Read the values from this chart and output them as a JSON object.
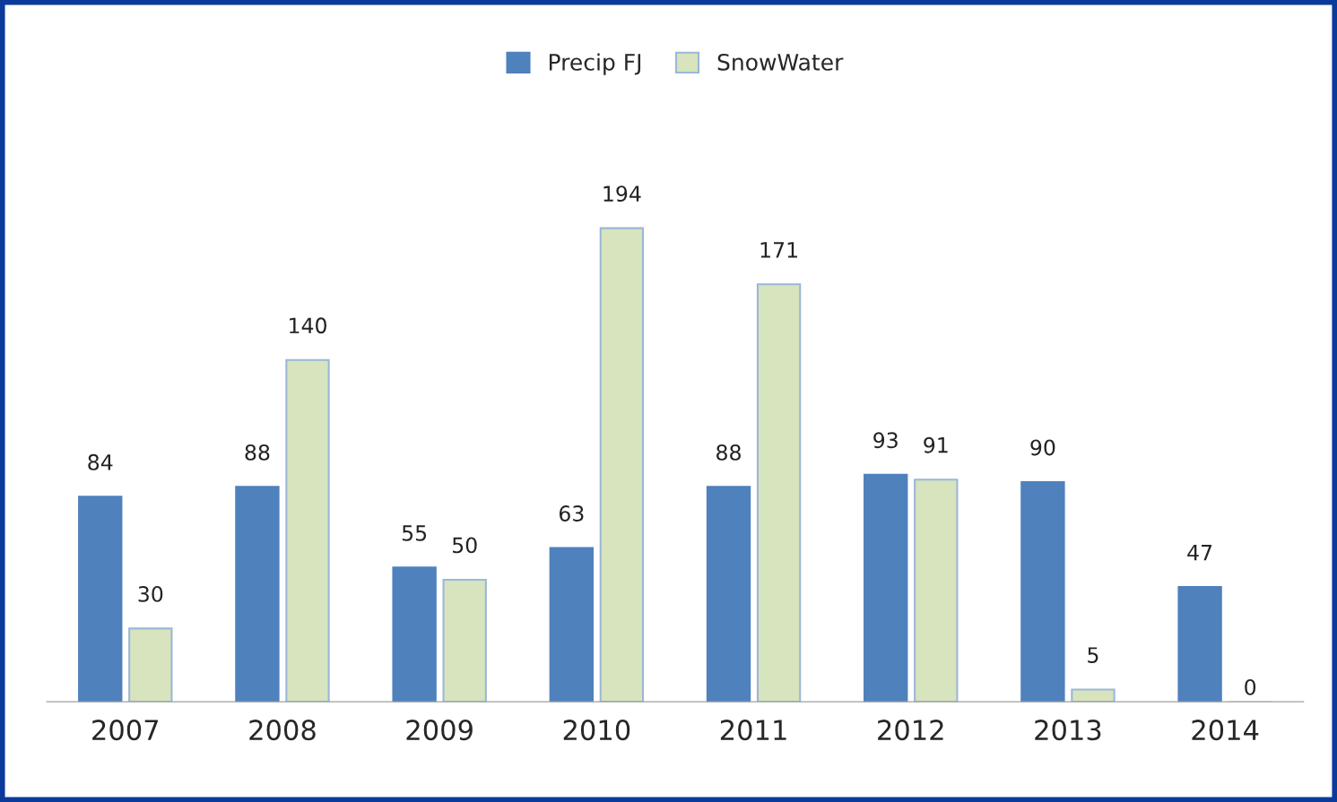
{
  "chart_data": {
    "type": "bar",
    "categories": [
      "2007",
      "2008",
      "2009",
      "2010",
      "2011",
      "2012",
      "2013",
      "2014"
    ],
    "series": [
      {
        "name": "Precip FJ",
        "color": "#4f81bd",
        "values": [
          84,
          88,
          55,
          63,
          88,
          93,
          90,
          47
        ]
      },
      {
        "name": "SnowWater",
        "color": "#d7e4bd",
        "values": [
          30,
          140,
          50,
          194,
          171,
          91,
          5,
          0
        ]
      }
    ],
    "data_labels": true,
    "legend": "top",
    "grid": false
  }
}
